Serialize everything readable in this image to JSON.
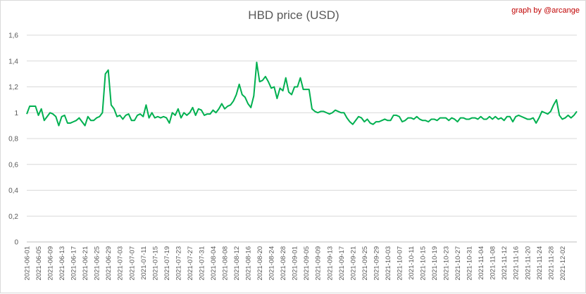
{
  "chart_data": {
    "type": "line",
    "title": "HBD price (USD)",
    "credit": "graph by @arcange",
    "xlabel": "",
    "ylabel": "",
    "ylim": [
      0,
      1.6
    ],
    "y_ticks": [
      "0",
      "0,2",
      "0,4",
      "0,6",
      "0,8",
      "1",
      "1,2",
      "1,4",
      "1,6"
    ],
    "grid": true,
    "legend": "none",
    "line_color": "#00b050",
    "x_tick_labels": [
      "2021-06-01",
      "2021-06-05",
      "2021-06-09",
      "2021-06-13",
      "2021-06-17",
      "2021-06-21",
      "2021-06-25",
      "2021-06-29",
      "2021-07-03",
      "2021-07-07",
      "2021-07-11",
      "2021-07-15",
      "2021-07-19",
      "2021-07-23",
      "2021-07-27",
      "2021-07-31",
      "2021-08-04",
      "2021-08-08",
      "2021-08-12",
      "2021-08-16",
      "2021-08-20",
      "2021-08-24",
      "2021-08-28",
      "2021-09-01",
      "2021-09-05",
      "2021-09-09",
      "2021-09-13",
      "2021-09-17",
      "2021-09-21",
      "2021-09-25",
      "2021-09-29",
      "2021-10-03",
      "2021-10-07",
      "2021-10-11",
      "2021-10-15",
      "2021-10-19",
      "2021-10-23",
      "2021-10-27",
      "2021-10-31",
      "2021-11-04",
      "2021-11-08",
      "2021-11-12",
      "2021-11-16",
      "2021-11-20",
      "2021-11-24",
      "2021-11-28",
      "2021-12-02"
    ],
    "x_start": "2021-06-01",
    "values": [
      0.99,
      1.05,
      1.05,
      1.05,
      0.98,
      1.03,
      0.94,
      0.97,
      1.0,
      0.99,
      0.97,
      0.9,
      0.97,
      0.98,
      0.92,
      0.92,
      0.93,
      0.94,
      0.96,
      0.93,
      0.9,
      0.97,
      0.94,
      0.94,
      0.96,
      0.97,
      1.0,
      1.3,
      1.33,
      1.06,
      1.03,
      0.97,
      0.98,
      0.95,
      0.98,
      0.99,
      0.94,
      0.94,
      0.98,
      0.99,
      0.97,
      1.06,
      0.96,
      1.0,
      0.96,
      0.97,
      0.96,
      0.97,
      0.96,
      0.92,
      1.0,
      0.98,
      1.03,
      0.96,
      1.0,
      0.98,
      1.0,
      1.04,
      0.98,
      1.03,
      1.02,
      0.98,
      0.99,
      0.99,
      1.02,
      1.0,
      1.03,
      1.07,
      1.03,
      1.05,
      1.06,
      1.09,
      1.14,
      1.22,
      1.14,
      1.12,
      1.07,
      1.04,
      1.13,
      1.39,
      1.24,
      1.25,
      1.28,
      1.24,
      1.19,
      1.2,
      1.11,
      1.19,
      1.17,
      1.27,
      1.16,
      1.14,
      1.2,
      1.2,
      1.27,
      1.18,
      1.18,
      1.18,
      1.03,
      1.01,
      1.0,
      1.01,
      1.01,
      1.0,
      0.99,
      1.0,
      1.02,
      1.01,
      1.0,
      1.0,
      0.96,
      0.93,
      0.91,
      0.94,
      0.97,
      0.96,
      0.93,
      0.95,
      0.92,
      0.91,
      0.93,
      0.93,
      0.94,
      0.95,
      0.94,
      0.94,
      0.98,
      0.98,
      0.97,
      0.93,
      0.94,
      0.96,
      0.96,
      0.95,
      0.97,
      0.95,
      0.94,
      0.94,
      0.93,
      0.95,
      0.95,
      0.94,
      0.96,
      0.96,
      0.96,
      0.94,
      0.96,
      0.95,
      0.93,
      0.96,
      0.96,
      0.95,
      0.95,
      0.96,
      0.96,
      0.95,
      0.97,
      0.95,
      0.95,
      0.97,
      0.95,
      0.97,
      0.95,
      0.96,
      0.94,
      0.97,
      0.97,
      0.93,
      0.97,
      0.98,
      0.97,
      0.96,
      0.95,
      0.95,
      0.96,
      0.92,
      0.96,
      1.01,
      1.0,
      0.99,
      1.01,
      1.06,
      1.1,
      0.98,
      0.95,
      0.96,
      0.98,
      0.96,
      0.98,
      1.01
    ]
  }
}
